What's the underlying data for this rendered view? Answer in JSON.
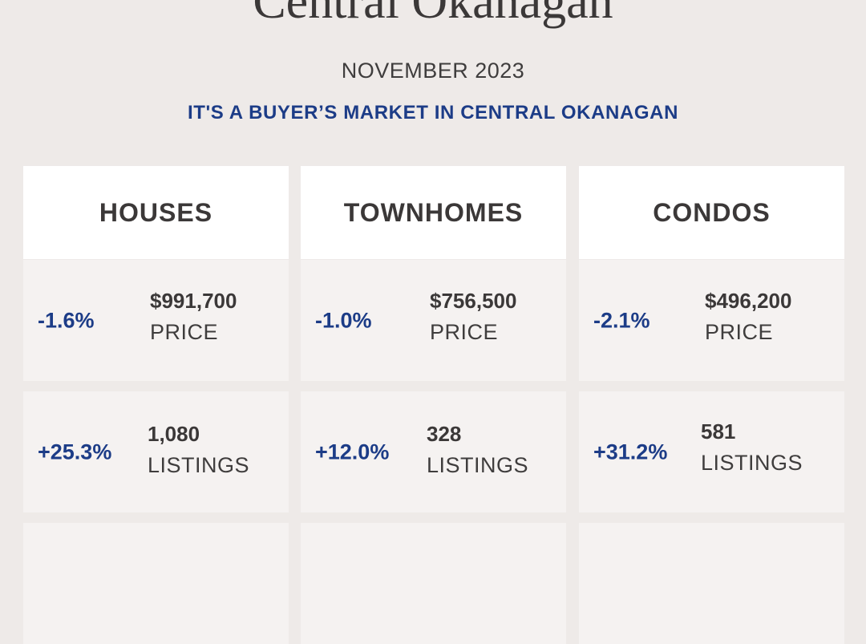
{
  "header": {
    "title": "Central Okanagan",
    "month": "NOVEMBER 2023",
    "tagline": "IT'S A BUYER’S MARKET IN CENTRAL OKANAGAN"
  },
  "columns": [
    {
      "heading": "HOUSES",
      "price": {
        "change": "-1.6%",
        "value": "$991,700",
        "label": "PRICE"
      },
      "listings": {
        "change": "+25.3%",
        "value": "1,080",
        "label": "LISTINGS"
      }
    },
    {
      "heading": "TOWNHOMES",
      "price": {
        "change": "-1.0%",
        "value": "$756,500",
        "label": "PRICE"
      },
      "listings": {
        "change": "+12.0%",
        "value": "328",
        "label": "LISTINGS"
      }
    },
    {
      "heading": "CONDOS",
      "price": {
        "change": "-2.1%",
        "value": "$496,200",
        "label": "PRICE"
      },
      "listings": {
        "change": "+31.2%",
        "value": "581",
        "label": "LISTINGS"
      }
    }
  ]
}
